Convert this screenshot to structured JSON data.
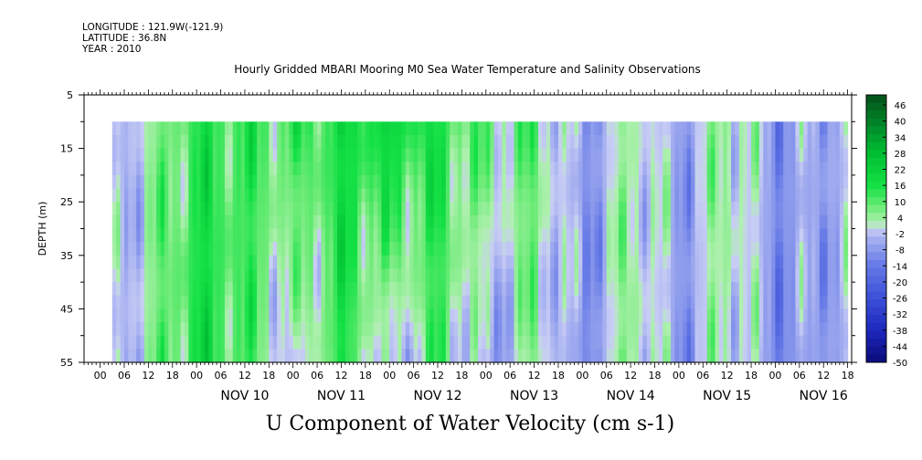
{
  "meta": {
    "longitude": "LONGITUDE : 121.9W(-121.9)",
    "latitude": "LATITUDE : 36.8N",
    "year": "YEAR : 2010"
  },
  "chart_data": {
    "type": "heatmap",
    "title": "Hourly Gridded MBARI Mooring M0 Sea Water Temperature and Salinity Observations",
    "xlabel": "U Component of Water Velocity (cm s-1)",
    "ylabel": "DEPTH (m)",
    "y_ticks": [
      5,
      15,
      25,
      35,
      45,
      55
    ],
    "ylim": [
      5,
      55
    ],
    "y_data_range": [
      10,
      55
    ],
    "x_hour_ticks": [
      "00",
      "06",
      "12",
      "18",
      "00",
      "06",
      "12",
      "18",
      "00",
      "06",
      "12",
      "18",
      "00",
      "06",
      "12",
      "18",
      "00",
      "06",
      "12",
      "18",
      "00",
      "06",
      "12",
      "18",
      "00",
      "06",
      "12",
      "18",
      "00",
      "06",
      "12",
      "18"
    ],
    "x_day_labels": [
      "NOV 10",
      "NOV 11",
      "NOV 12",
      "NOV 13",
      "NOV 14",
      "NOV 15",
      "NOV 16"
    ],
    "xlim_hours_from_nov9_00": [
      -4,
      187
    ],
    "x_data_start_hours_from_nov9_00": 3,
    "colorbar_labels": [
      "46",
      "40",
      "34",
      "28",
      "22",
      "16",
      "10",
      "4",
      "-2",
      "-8",
      "-14",
      "-20",
      "-26",
      "-32",
      "-38",
      "-44",
      "-50"
    ],
    "colorbar_range": [
      -50,
      50
    ],
    "colors": {
      "strong_positive": "#0a5a1e",
      "positive": "#00e640",
      "weak_positive": "#7ef07e",
      "weak_negative": "#aab4f0",
      "negative": "#7e8ce6",
      "strong_negative": "#0a0a80"
    },
    "grid": false,
    "colorbar": "right",
    "approx_column_profiles": [
      {
        "day_hour": "NOV 9 03",
        "u_surface": -5,
        "u_bottom": -5
      },
      {
        "day_hour": "NOV 10 00",
        "u_surface": 14,
        "u_bottom": 16
      },
      {
        "day_hour": "NOV 10 12",
        "u_surface": 12,
        "u_bottom": 10
      },
      {
        "day_hour": "NOV 11 00",
        "u_surface": 10,
        "u_bottom": -4
      },
      {
        "day_hour": "NOV 11 12",
        "u_surface": 16,
        "u_bottom": 14
      },
      {
        "day_hour": "NOV 12 00",
        "u_surface": 18,
        "u_bottom": -6
      },
      {
        "day_hour": "NOV 12 12",
        "u_surface": 14,
        "u_bottom": 10
      },
      {
        "day_hour": "NOV 13 00",
        "u_surface": 6,
        "u_bottom": -8
      },
      {
        "day_hour": "NOV 13 12",
        "u_surface": 8,
        "u_bottom": 4
      },
      {
        "day_hour": "NOV 14 00",
        "u_surface": -8,
        "u_bottom": -10
      },
      {
        "day_hour": "NOV 14 12",
        "u_surface": 4,
        "u_bottom": 6
      },
      {
        "day_hour": "NOV 15 00",
        "u_surface": -6,
        "u_bottom": -8
      },
      {
        "day_hour": "NOV 15 12",
        "u_surface": 6,
        "u_bottom": 4
      },
      {
        "day_hour": "NOV 16 00",
        "u_surface": -8,
        "u_bottom": -10
      },
      {
        "day_hour": "NOV 16 12",
        "u_surface": -4,
        "u_bottom": -6
      }
    ]
  }
}
